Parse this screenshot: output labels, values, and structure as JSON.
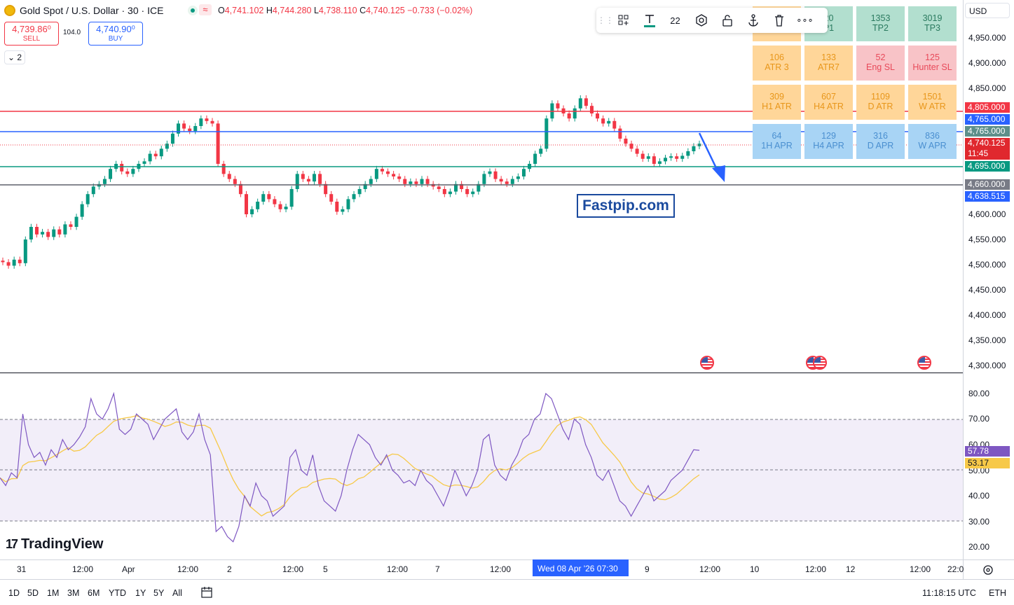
{
  "header": {
    "symbol": "Gold Spot / U.S. Dollar · 30 · ICE",
    "wave_icon": "≈",
    "ohlc": {
      "o_label": "O",
      "o": "4,741.102",
      "h_label": "H",
      "h": "4,744.280",
      "l_label": "L",
      "l": "4,738.110",
      "c_label": "C",
      "c": "4,740.125",
      "change": "−0.733 (−0.02%)"
    },
    "sell": {
      "price": "4,739.86⁰",
      "label": "SELL"
    },
    "buy": {
      "price": "4,740.90⁰",
      "label": "BUY"
    },
    "spread": "104.0",
    "collapse": "⌄ 2"
  },
  "toolbar": {
    "grip": "⋮⋮",
    "font_size": "22",
    "more": "∘∘∘"
  },
  "grid": [
    [
      {
        "v": "",
        "l": "",
        "c": "orange"
      },
      {
        "v": "20",
        "l": "P1",
        "c": "green"
      },
      {
        "v": "1353",
        "l": "TP2",
        "c": "green"
      },
      {
        "v": "3019",
        "l": "TP3",
        "c": "green"
      }
    ],
    [
      {
        "v": "106",
        "l": "ATR 3",
        "c": "orange"
      },
      {
        "v": "133",
        "l": "ATR7",
        "c": "orange"
      },
      {
        "v": "52",
        "l": "Eng SL",
        "c": "red"
      },
      {
        "v": "125",
        "l": "Hunter SL",
        "c": "red"
      }
    ],
    [
      {
        "v": "309",
        "l": "H1 ATR",
        "c": "orange"
      },
      {
        "v": "607",
        "l": "H4 ATR",
        "c": "orange"
      },
      {
        "v": "1109",
        "l": "D ATR",
        "c": "orange"
      },
      {
        "v": "1501",
        "l": "W ATR",
        "c": "orange"
      }
    ],
    [
      {
        "v": "64",
        "l": "1H APR",
        "c": "blue"
      },
      {
        "v": "129",
        "l": "H4 APR",
        "c": "blue"
      },
      {
        "v": "316",
        "l": "D APR",
        "c": "blue"
      },
      {
        "v": "836",
        "l": "W APR",
        "c": "blue"
      }
    ]
  ],
  "currency": "USD",
  "price_ticks": [
    "4,950.000",
    "4,900.000",
    "4,850.000",
    "4,600.000",
    "4,550.000",
    "4,500.000",
    "4,450.000",
    "4,400.000",
    "4,350.000",
    "4,300.000"
  ],
  "price_tags": {
    "red_level": "4,805.000",
    "blue_level": "4,765.000",
    "teal_level": "4,765.000",
    "last_price": "4,740.125",
    "countdown": "11:45",
    "green_level": "4,695.000",
    "gray_level": "4,660.000",
    "low_price": "4,638.515"
  },
  "rsi_ticks": [
    "80.00",
    "70.00",
    "60.00",
    "50.00",
    "40.00",
    "30.00",
    "20.00"
  ],
  "rsi_tags": {
    "rsi": "57.78",
    "ma": "53.17"
  },
  "watermark": "Fastpip.com",
  "logo": "TradingView",
  "time_labels": [
    "31",
    "12:00",
    "Apr",
    "12:00",
    "2",
    "12:00",
    "5",
    "12:00",
    "7",
    "12:00",
    "9",
    "12:00",
    "10",
    "12:00",
    "12",
    "12:00",
    "22:0"
  ],
  "time_highlight": "Wed 08 Apr '26   07:30",
  "ranges": [
    "1D",
    "5D",
    "1M",
    "3M",
    "6M",
    "YTD",
    "1Y",
    "5Y",
    "All"
  ],
  "clock": "11:18:15 UTC",
  "session": "ETH",
  "colors": {
    "up": "#089981",
    "down": "#f23645",
    "blue_line": "#2962ff",
    "rsi_line": "#7e57c2",
    "rsi_ma": "#f7c948"
  },
  "chart_data": {
    "type": "line",
    "series": [
      {
        "name": "close",
        "values": [
          4505,
          4498,
          4510,
          4503,
          4550,
          4575,
          4560,
          4565,
          4555,
          4570,
          4560,
          4580,
          4575,
          4595,
          4620,
          4640,
          4655,
          4660,
          4670,
          4690,
          4700,
          4685,
          4680,
          4690,
          4700,
          4705,
          4720,
          4715,
          4730,
          4740,
          4760,
          4780,
          4770,
          4765,
          4775,
          4790,
          4785,
          4780,
          4700,
          4680,
          4670,
          4660,
          4640,
          4600,
          4610,
          4625,
          4640,
          4630,
          4620,
          4610,
          4615,
          4650,
          4680,
          4670,
          4665,
          4680,
          4660,
          4640,
          4625,
          4605,
          4610,
          4630,
          4640,
          4650,
          4660,
          4670,
          4690,
          4685,
          4680,
          4675,
          4670,
          4660,
          4665,
          4660,
          4670,
          4660,
          4655,
          4650,
          4640,
          4645,
          4660,
          4650,
          4640,
          4645,
          4660,
          4680,
          4685,
          4670,
          4665,
          4660,
          4670,
          4675,
          4690,
          4700,
          4720,
          4730,
          4790,
          4820,
          4810,
          4800,
          4790,
          4810,
          4830,
          4815,
          4800,
          4790,
          4780,
          4785,
          4770,
          4750,
          4740,
          4730,
          4720,
          4710,
          4715,
          4700,
          4705,
          4712,
          4715,
          4710,
          4716,
          4725,
          4735,
          4740
        ]
      }
    ],
    "rsi": [
      47,
      44,
      49,
      47,
      72,
      60,
      55,
      57,
      52,
      58,
      55,
      62,
      58,
      60,
      63,
      67,
      78,
      72,
      70,
      74,
      80,
      66,
      64,
      66,
      72,
      70,
      68,
      62,
      66,
      70,
      72,
      74,
      65,
      62,
      65,
      72,
      62,
      56,
      26,
      28,
      24,
      22,
      28,
      40,
      36,
      45,
      40,
      38,
      32,
      34,
      36,
      55,
      58,
      50,
      48,
      56,
      44,
      38,
      36,
      34,
      40,
      50,
      58,
      64,
      62,
      60,
      55,
      52,
      56,
      50,
      48,
      45,
      46,
      44,
      50,
      46,
      44,
      40,
      36,
      42,
      50,
      45,
      40,
      44,
      50,
      62,
      64,
      52,
      48,
      46,
      52,
      56,
      62,
      64,
      70,
      72,
      80,
      78,
      72,
      66,
      62,
      70,
      68,
      60,
      55,
      48,
      46,
      50,
      44,
      38,
      36,
      32,
      36,
      40,
      44,
      38,
      40,
      42,
      46,
      48,
      50,
      54,
      58,
      57.78
    ],
    "ylim": [
      4300,
      4950
    ],
    "rsi_ylim": [
      20,
      80
    ],
    "levels": [
      4805,
      4765,
      4695,
      4660
    ]
  }
}
